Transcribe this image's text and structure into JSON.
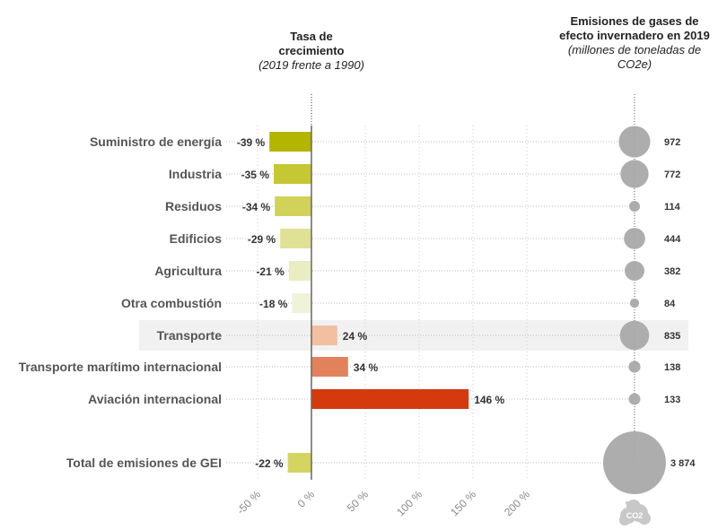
{
  "chart_data": {
    "type": "bar",
    "left_header": {
      "title": "Tasa de crecimiento",
      "subtitle": "(2019 frente a 1990)"
    },
    "right_header": {
      "title": "Emisiones de gases de efecto invernadero en 2019",
      "subtitle": "(millones de toneladas de CO2e)"
    },
    "categories": [
      "Suministro de energía",
      "Industria",
      "Residuos",
      "Edificios",
      "Agricultura",
      "Otra combustión",
      "Transporte",
      "Transporte marítimo internacional",
      "Aviación internacional",
      "Total de emisiones de GEI"
    ],
    "growth_pct": [
      -39,
      -35,
      -34,
      -29,
      -21,
      -18,
      24,
      34,
      146,
      -22
    ],
    "growth_labels": [
      "-39 %",
      "-35 %",
      "-34 %",
      "-29 %",
      "-21 %",
      "-18 %",
      "24 %",
      "34 %",
      "146 %",
      "-22 %"
    ],
    "emissions": [
      972,
      772,
      114,
      444,
      382,
      84,
      835,
      138,
      133,
      3874
    ],
    "emission_labels": [
      "972",
      "772",
      "114",
      "444",
      "382",
      "84",
      "835",
      "138",
      "133",
      "3 874"
    ],
    "bar_colors": [
      "#b3b500",
      "#c5c733",
      "#d0d25a",
      "#dfe195",
      "#eaecc2",
      "#f1f2da",
      "#f2bfa0",
      "#e2825a",
      "#d43a0e",
      "#d3d560"
    ],
    "bubble_color": "#a9a9a9",
    "highlight_category": "Transporte",
    "x_ticks": [
      "-50 %",
      "0 %",
      "50 %",
      "100 %",
      "150 %",
      "200 %"
    ],
    "x_tick_values": [
      -50,
      0,
      50,
      100,
      150,
      200
    ],
    "xlim": [
      -50,
      200
    ],
    "grid": true,
    "icon": "co2-cloud-icon",
    "icon_text": "CO2"
  }
}
